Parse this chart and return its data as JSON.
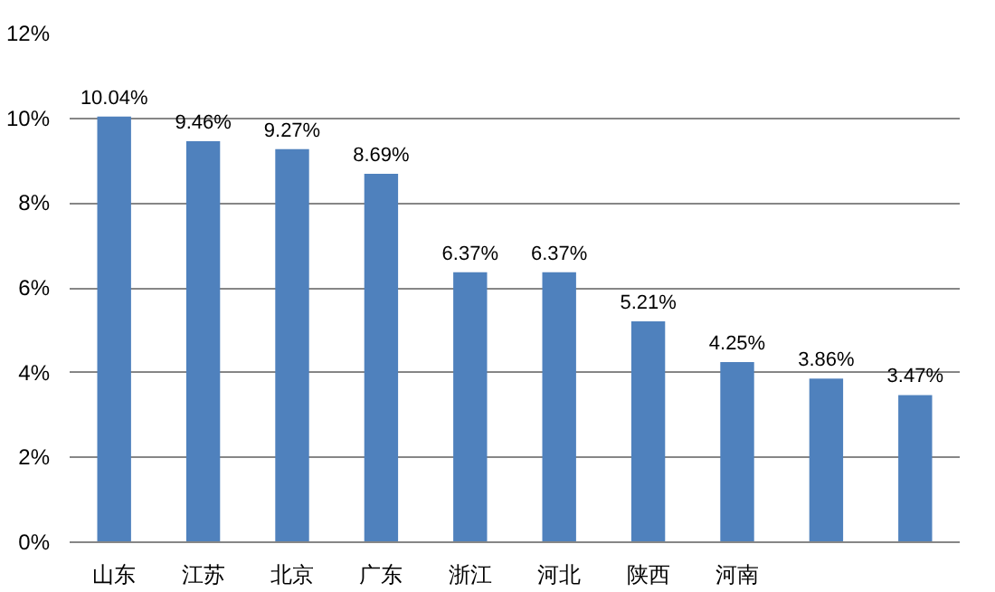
{
  "chart_data": {
    "type": "bar",
    "categories": [
      "山东",
      "江苏",
      "北京",
      "广东",
      "浙江",
      "河北",
      "陕西",
      "河南",
      null,
      null
    ],
    "values": [
      10.04,
      9.46,
      9.27,
      8.69,
      6.37,
      6.37,
      5.21,
      4.25,
      3.86,
      3.47
    ],
    "value_labels": [
      "10.04%",
      "9.46%",
      "9.27%",
      "8.69%",
      "6.37%",
      "6.37%",
      "5.21%",
      "4.25%",
      "3.86%",
      "3.47%"
    ],
    "color": "#4f81bd",
    "ylim": [
      0,
      12
    ],
    "yticks": [
      {
        "value": 0,
        "label": "0%"
      },
      {
        "value": 2,
        "label": "2%"
      },
      {
        "value": 4,
        "label": "4%"
      },
      {
        "value": 6,
        "label": "6%"
      },
      {
        "value": 8,
        "label": "8%"
      },
      {
        "value": 10,
        "label": "10%"
      },
      {
        "value": 12,
        "label": "12%"
      }
    ],
    "grid": "y"
  }
}
